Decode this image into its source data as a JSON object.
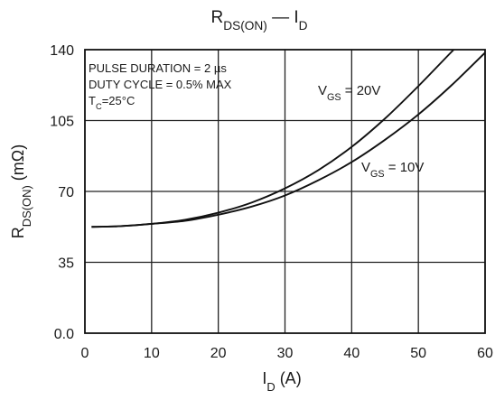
{
  "chart_data": {
    "type": "line",
    "title": {
      "main": "R",
      "main_sub": "DS(ON)",
      "dash": "—",
      "var": "I",
      "var_sub": "D"
    },
    "xlabel": {
      "main": "I",
      "sub": "D",
      "unit": "(A)"
    },
    "ylabel": {
      "main": "R",
      "sub": "DS(ON)",
      "unit": "(mΩ)"
    },
    "xlim": [
      0,
      60
    ],
    "ylim": [
      0,
      140
    ],
    "xticks": [
      {
        "value": 0,
        "label": "0"
      },
      {
        "value": 10,
        "label": "10"
      },
      {
        "value": 20,
        "label": "20"
      },
      {
        "value": 30,
        "label": "30"
      },
      {
        "value": 40,
        "label": "40"
      },
      {
        "value": 50,
        "label": "50"
      },
      {
        "value": 60,
        "label": "60"
      }
    ],
    "yticks": [
      {
        "value": 0,
        "label": "0.0"
      },
      {
        "value": 35,
        "label": "35"
      },
      {
        "value": 70,
        "label": "70"
      },
      {
        "value": 105,
        "label": "105"
      },
      {
        "value": 140,
        "label": "140"
      }
    ],
    "grid": true,
    "annotations": [
      {
        "parts": [
          {
            "t": "PULSE DURATION = 2 µs"
          }
        ]
      },
      {
        "parts": [
          {
            "t": "DUTY CYCLE = 0.5% MAX"
          }
        ]
      },
      {
        "parts": [
          {
            "t": "T"
          },
          {
            "t": "C",
            "sub": true
          },
          {
            "t": "=25°C"
          }
        ]
      }
    ],
    "series": [
      {
        "label": {
          "main": "V",
          "sub": "GS",
          "value": " = 20V"
        },
        "x": [
          1,
          5,
          10,
          15,
          20,
          25,
          30,
          35,
          40,
          45,
          50,
          55,
          56
        ],
        "y": [
          52.5,
          52.8,
          54,
          56,
          59.5,
          64.5,
          71.5,
          80.5,
          92,
          106,
          122,
          139,
          142
        ]
      },
      {
        "label": {
          "main": "V",
          "sub": "GS",
          "value": " = 10V"
        },
        "x": [
          1,
          5,
          10,
          15,
          20,
          25,
          30,
          35,
          40,
          45,
          50,
          55,
          60
        ],
        "y": [
          52.5,
          52.8,
          54,
          55.5,
          58.5,
          62.5,
          68,
          75.5,
          84.5,
          95.5,
          108,
          122.5,
          138.5
        ]
      }
    ]
  }
}
